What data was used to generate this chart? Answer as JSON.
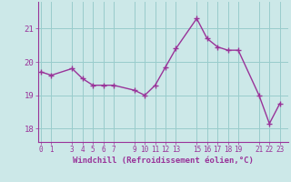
{
  "x": [
    0,
    1,
    3,
    4,
    5,
    6,
    7,
    9,
    10,
    11,
    12,
    13,
    15,
    16,
    17,
    18,
    19,
    21,
    22,
    23
  ],
  "y": [
    19.7,
    19.6,
    19.8,
    19.5,
    19.3,
    19.3,
    19.3,
    19.15,
    19.0,
    19.3,
    19.85,
    20.4,
    21.3,
    20.7,
    20.45,
    20.35,
    20.35,
    19.0,
    18.15,
    18.75
  ],
  "line_color": "#993399",
  "marker_color": "#993399",
  "bg_color": "#cce8e8",
  "grid_color": "#99cccc",
  "xlabel": "Windchill (Refroidissement éolien,°C)",
  "xticks": [
    0,
    1,
    3,
    4,
    5,
    6,
    7,
    9,
    10,
    11,
    12,
    13,
    15,
    16,
    17,
    18,
    19,
    21,
    22,
    23
  ],
  "yticks": [
    18,
    19,
    20,
    21
  ],
  "ylim": [
    17.6,
    21.8
  ],
  "xlim": [
    -0.3,
    23.8
  ],
  "tick_color": "#993399",
  "axis_color": "#993399",
  "xtick_fontsize": 5.5,
  "ytick_fontsize": 6.5,
  "xlabel_fontsize": 6.5
}
